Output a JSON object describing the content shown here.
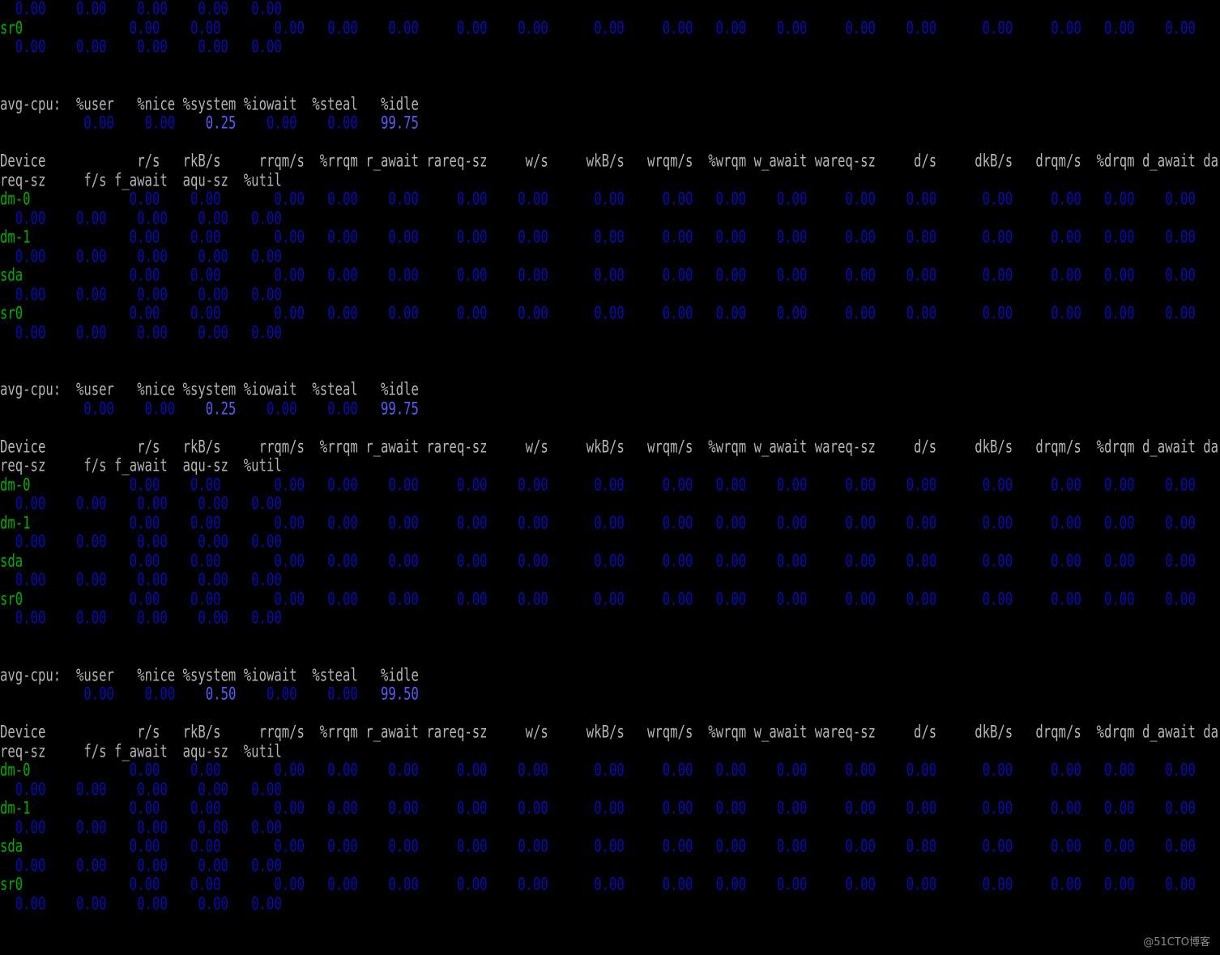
{
  "colors": {
    "background": "#000000",
    "header": "#b4b4b4",
    "device": "#00b000",
    "value": "#0a0ab4",
    "highlight": "#5a5aff"
  },
  "leading": {
    "tail_values": [
      "0.00",
      "0.00",
      "0.00",
      "0.00",
      "0.00"
    ],
    "devices": [
      {
        "name": "sr0",
        "row1": [
          "0.00",
          "0.00",
          "0.00",
          "0.00",
          "0.00",
          "0.00",
          "0.00",
          "0.00",
          "0.00",
          "0.00",
          "0.00",
          "0.00",
          "0.00",
          "0.00",
          "0.00",
          "0.00",
          "0.00"
        ],
        "row2": [
          "0.00",
          "0.00",
          "0.00",
          "0.00",
          "0.00"
        ]
      }
    ]
  },
  "device_header_row1": [
    "Device",
    "r/s",
    "rkB/s",
    "rrqm/s",
    "%rrqm",
    "r_await",
    "rareq-sz",
    "w/s",
    "wkB/s",
    "wrqm/s",
    "%wrqm",
    "w_await",
    "wareq-sz",
    "d/s",
    "dkB/s",
    "drqm/s",
    "%drqm",
    "d_await",
    "da"
  ],
  "device_header_row2": [
    "req-sz",
    "f/s",
    "f_await",
    "aqu-sz",
    "%util"
  ],
  "cpu_header": [
    "avg-cpu:",
    "%user",
    "%nice",
    "%system",
    "%iowait",
    "%steal",
    "%idle"
  ],
  "samples": [
    {
      "cpu_values": [
        "0.00",
        "0.00",
        "0.25",
        "0.00",
        "0.00",
        "99.75"
      ],
      "devices": [
        {
          "name": "dm-0",
          "row1": [
            "0.00",
            "0.00",
            "0.00",
            "0.00",
            "0.00",
            "0.00",
            "0.00",
            "0.00",
            "0.00",
            "0.00",
            "0.00",
            "0.00",
            "0.00",
            "0.00",
            "0.00",
            "0.00",
            "0.00"
          ],
          "row2": [
            "0.00",
            "0.00",
            "0.00",
            "0.00",
            "0.00"
          ]
        },
        {
          "name": "dm-1",
          "row1": [
            "0.00",
            "0.00",
            "0.00",
            "0.00",
            "0.00",
            "0.00",
            "0.00",
            "0.00",
            "0.00",
            "0.00",
            "0.00",
            "0.00",
            "0.00",
            "0.00",
            "0.00",
            "0.00",
            "0.00"
          ],
          "row2": [
            "0.00",
            "0.00",
            "0.00",
            "0.00",
            "0.00"
          ]
        },
        {
          "name": "sda",
          "row1": [
            "0.00",
            "0.00",
            "0.00",
            "0.00",
            "0.00",
            "0.00",
            "0.00",
            "0.00",
            "0.00",
            "0.00",
            "0.00",
            "0.00",
            "0.00",
            "0.00",
            "0.00",
            "0.00",
            "0.00"
          ],
          "row2": [
            "0.00",
            "0.00",
            "0.00",
            "0.00",
            "0.00"
          ]
        },
        {
          "name": "sr0",
          "row1": [
            "0.00",
            "0.00",
            "0.00",
            "0.00",
            "0.00",
            "0.00",
            "0.00",
            "0.00",
            "0.00",
            "0.00",
            "0.00",
            "0.00",
            "0.00",
            "0.00",
            "0.00",
            "0.00",
            "0.00"
          ],
          "row2": [
            "0.00",
            "0.00",
            "0.00",
            "0.00",
            "0.00"
          ]
        }
      ]
    },
    {
      "cpu_values": [
        "0.00",
        "0.00",
        "0.25",
        "0.00",
        "0.00",
        "99.75"
      ],
      "devices": [
        {
          "name": "dm-0",
          "row1": [
            "0.00",
            "0.00",
            "0.00",
            "0.00",
            "0.00",
            "0.00",
            "0.00",
            "0.00",
            "0.00",
            "0.00",
            "0.00",
            "0.00",
            "0.00",
            "0.00",
            "0.00",
            "0.00",
            "0.00"
          ],
          "row2": [
            "0.00",
            "0.00",
            "0.00",
            "0.00",
            "0.00"
          ]
        },
        {
          "name": "dm-1",
          "row1": [
            "0.00",
            "0.00",
            "0.00",
            "0.00",
            "0.00",
            "0.00",
            "0.00",
            "0.00",
            "0.00",
            "0.00",
            "0.00",
            "0.00",
            "0.00",
            "0.00",
            "0.00",
            "0.00",
            "0.00"
          ],
          "row2": [
            "0.00",
            "0.00",
            "0.00",
            "0.00",
            "0.00"
          ]
        },
        {
          "name": "sda",
          "row1": [
            "0.00",
            "0.00",
            "0.00",
            "0.00",
            "0.00",
            "0.00",
            "0.00",
            "0.00",
            "0.00",
            "0.00",
            "0.00",
            "0.00",
            "0.00",
            "0.00",
            "0.00",
            "0.00",
            "0.00"
          ],
          "row2": [
            "0.00",
            "0.00",
            "0.00",
            "0.00",
            "0.00"
          ]
        },
        {
          "name": "sr0",
          "row1": [
            "0.00",
            "0.00",
            "0.00",
            "0.00",
            "0.00",
            "0.00",
            "0.00",
            "0.00",
            "0.00",
            "0.00",
            "0.00",
            "0.00",
            "0.00",
            "0.00",
            "0.00",
            "0.00",
            "0.00"
          ],
          "row2": [
            "0.00",
            "0.00",
            "0.00",
            "0.00",
            "0.00"
          ]
        }
      ]
    },
    {
      "cpu_values": [
        "0.00",
        "0.00",
        "0.50",
        "0.00",
        "0.00",
        "99.50"
      ],
      "devices": [
        {
          "name": "dm-0",
          "row1": [
            "0.00",
            "0.00",
            "0.00",
            "0.00",
            "0.00",
            "0.00",
            "0.00",
            "0.00",
            "0.00",
            "0.00",
            "0.00",
            "0.00",
            "0.00",
            "0.00",
            "0.00",
            "0.00",
            "0.00"
          ],
          "row2": [
            "0.00",
            "0.00",
            "0.00",
            "0.00",
            "0.00"
          ]
        },
        {
          "name": "dm-1",
          "row1": [
            "0.00",
            "0.00",
            "0.00",
            "0.00",
            "0.00",
            "0.00",
            "0.00",
            "0.00",
            "0.00",
            "0.00",
            "0.00",
            "0.00",
            "0.00",
            "0.00",
            "0.00",
            "0.00",
            "0.00"
          ],
          "row2": [
            "0.00",
            "0.00",
            "0.00",
            "0.00",
            "0.00"
          ]
        },
        {
          "name": "sda",
          "row1": [
            "0.00",
            "0.00",
            "0.00",
            "0.00",
            "0.00",
            "0.00",
            "0.00",
            "0.00",
            "0.00",
            "0.00",
            "0.00",
            "0.00",
            "0.00",
            "0.00",
            "0.00",
            "0.00",
            "0.00"
          ],
          "row2": [
            "0.00",
            "0.00",
            "0.00",
            "0.00",
            "0.00"
          ]
        },
        {
          "name": "sr0",
          "row1": [
            "0.00",
            "0.00",
            "0.00",
            "0.00",
            "0.00",
            "0.00",
            "0.00",
            "0.00",
            "0.00",
            "0.00",
            "0.00",
            "0.00",
            "0.00",
            "0.00",
            "0.00",
            "0.00",
            "0.00"
          ],
          "row2": [
            "0.00",
            "0.00",
            "0.00",
            "0.00",
            "0.00"
          ]
        }
      ]
    }
  ],
  "watermark": "@51CTO博客"
}
